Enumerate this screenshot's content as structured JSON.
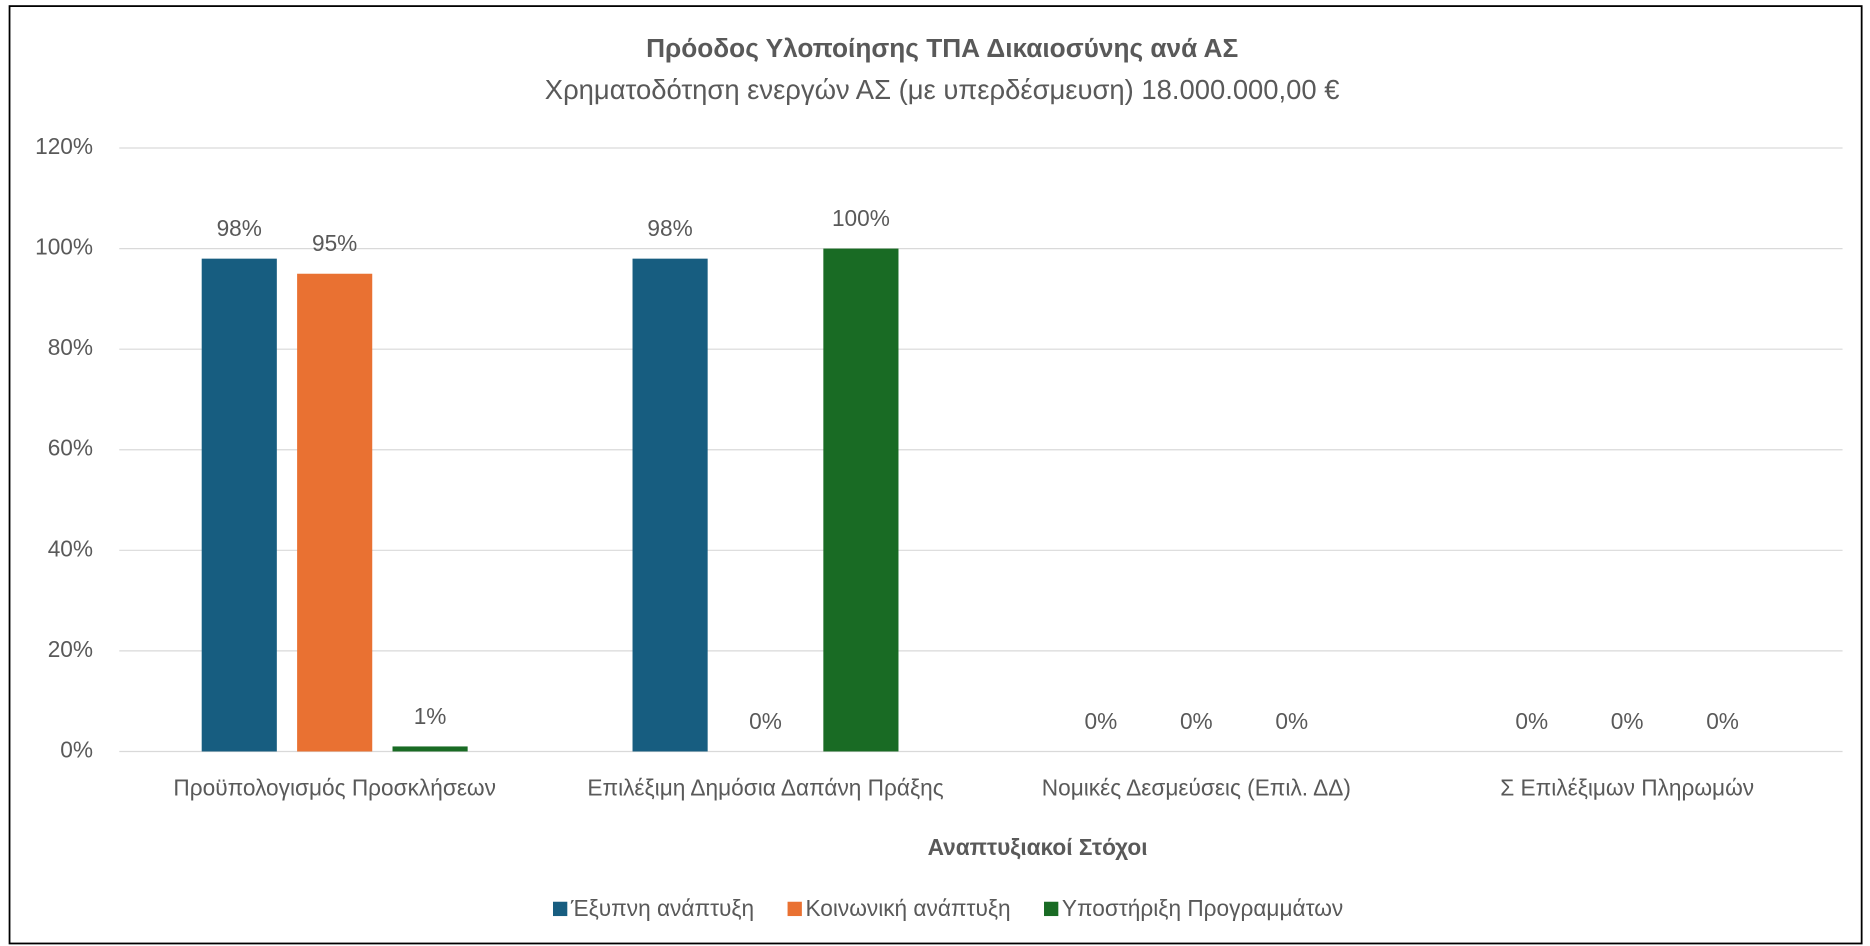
{
  "chart_data": {
    "type": "bar",
    "title": "Πρόοδος Υλοποίησης ΤΠΑ Δικαιοσύνης ανά ΑΣ",
    "subtitle": "Χρηματοδότηση ενεργών ΑΣ (με υπερδέσμευση) 18.000.000,00 €",
    "x_label": "Αναπτυξιακοί Στόχοι",
    "categories": [
      "Προϋπολογισμός Προσκλήσεων",
      "Επιλέξιμη Δημόσια Δαπάνη Πράξης",
      "Νομικές Δεσμεύσεις (Επιλ. ΔΔ)",
      "Σ Επιλέξιμων Πληρωμών"
    ],
    "series": [
      {
        "name": "Έξυπνη ανάπτυξη",
        "color": "#175d80",
        "values": [
          98,
          98,
          0,
          0
        ],
        "value_labels": [
          "98%",
          "98%",
          "0%",
          "0%"
        ]
      },
      {
        "name": "Κοινωνική ανάπτυξη",
        "color": "#e97132",
        "values": [
          95,
          0,
          0,
          0
        ],
        "value_labels": [
          "95%",
          "0%",
          "0%",
          "0%"
        ]
      },
      {
        "name": "Υποστήριξη Προγραμμάτων",
        "color": "#196b24",
        "values": [
          1,
          100,
          0,
          0
        ],
        "value_labels": [
          "1%",
          "100%",
          "0%",
          "0%"
        ]
      }
    ],
    "ylim": [
      0,
      120
    ],
    "yticks": [
      {
        "value": 0,
        "label": "0%"
      },
      {
        "value": 20,
        "label": "20%"
      },
      {
        "value": 40,
        "label": "40%"
      },
      {
        "value": 60,
        "label": "60%"
      },
      {
        "value": 80,
        "label": "80%"
      },
      {
        "value": 100,
        "label": "100%"
      },
      {
        "value": 120,
        "label": "120%"
      }
    ],
    "grid": true,
    "legend": "bottom"
  }
}
